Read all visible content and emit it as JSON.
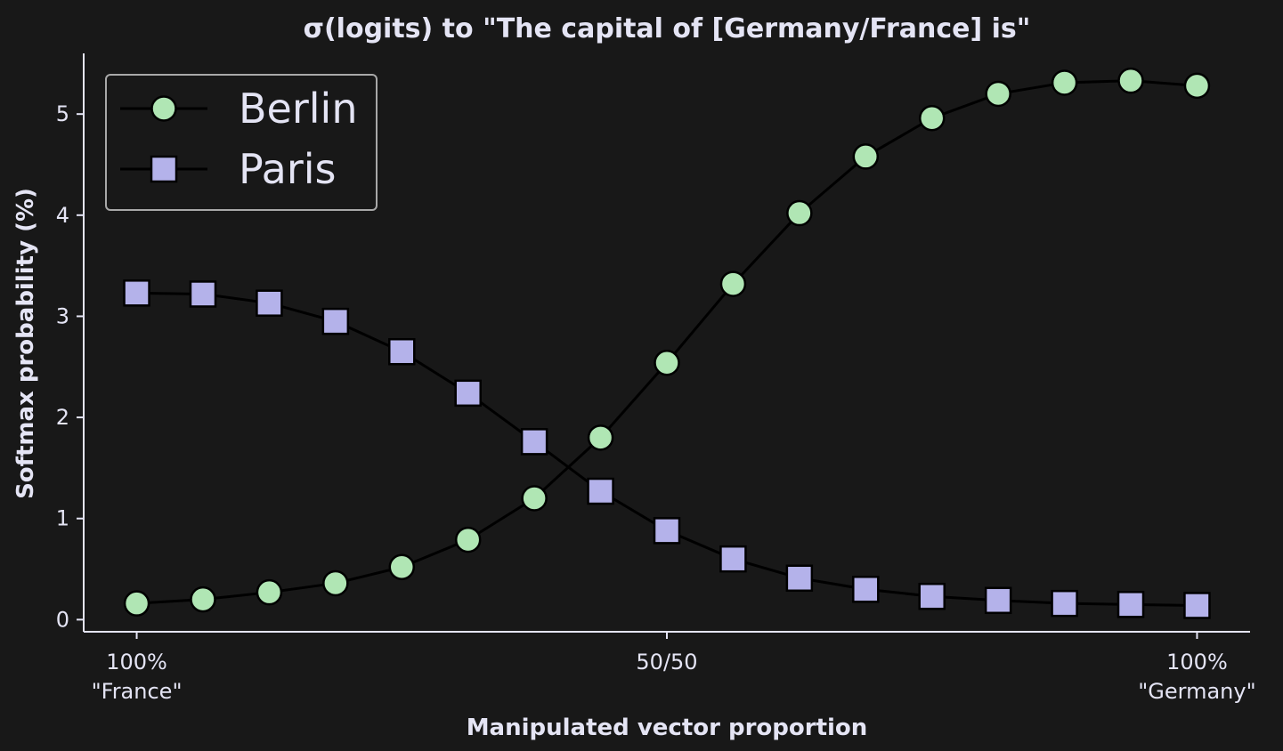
{
  "chart_data": {
    "type": "line",
    "title": "σ(logits) to \"The capital of [Germany/France] is\"",
    "xlabel": "Manipulated vector proportion",
    "ylabel": "Softmax probability (%)",
    "x_ticks": [
      {
        "pos": 0,
        "lines": [
          "100%",
          "\"France\""
        ]
      },
      {
        "pos": 8,
        "lines": [
          "50/50"
        ]
      },
      {
        "pos": 16,
        "lines": [
          "100%",
          "\"Germany\""
        ]
      }
    ],
    "y_ticks": [
      0,
      1,
      2,
      3,
      4,
      5
    ],
    "ylim": [
      -0.12,
      5.6
    ],
    "xlim": [
      -0.8,
      16.8
    ],
    "legend_position": "upper-left",
    "x": [
      0,
      1,
      2,
      3,
      4,
      5,
      6,
      7,
      8,
      9,
      10,
      11,
      12,
      13,
      14,
      15,
      16
    ],
    "series": [
      {
        "name": "Berlin",
        "marker": "circle",
        "color": "#b0e6b4",
        "values": [
          0.16,
          0.2,
          0.27,
          0.36,
          0.52,
          0.79,
          1.2,
          1.8,
          2.54,
          3.32,
          4.02,
          4.58,
          4.96,
          5.2,
          5.31,
          5.33,
          5.28
        ]
      },
      {
        "name": "Paris",
        "marker": "square",
        "color": "#b4b2ea",
        "values": [
          3.23,
          3.22,
          3.13,
          2.95,
          2.65,
          2.24,
          1.76,
          1.27,
          0.88,
          0.6,
          0.41,
          0.3,
          0.23,
          0.19,
          0.16,
          0.15,
          0.14
        ]
      }
    ],
    "line_color": "#000000",
    "axis_color": "#e4e4f4",
    "background": "#181818"
  }
}
